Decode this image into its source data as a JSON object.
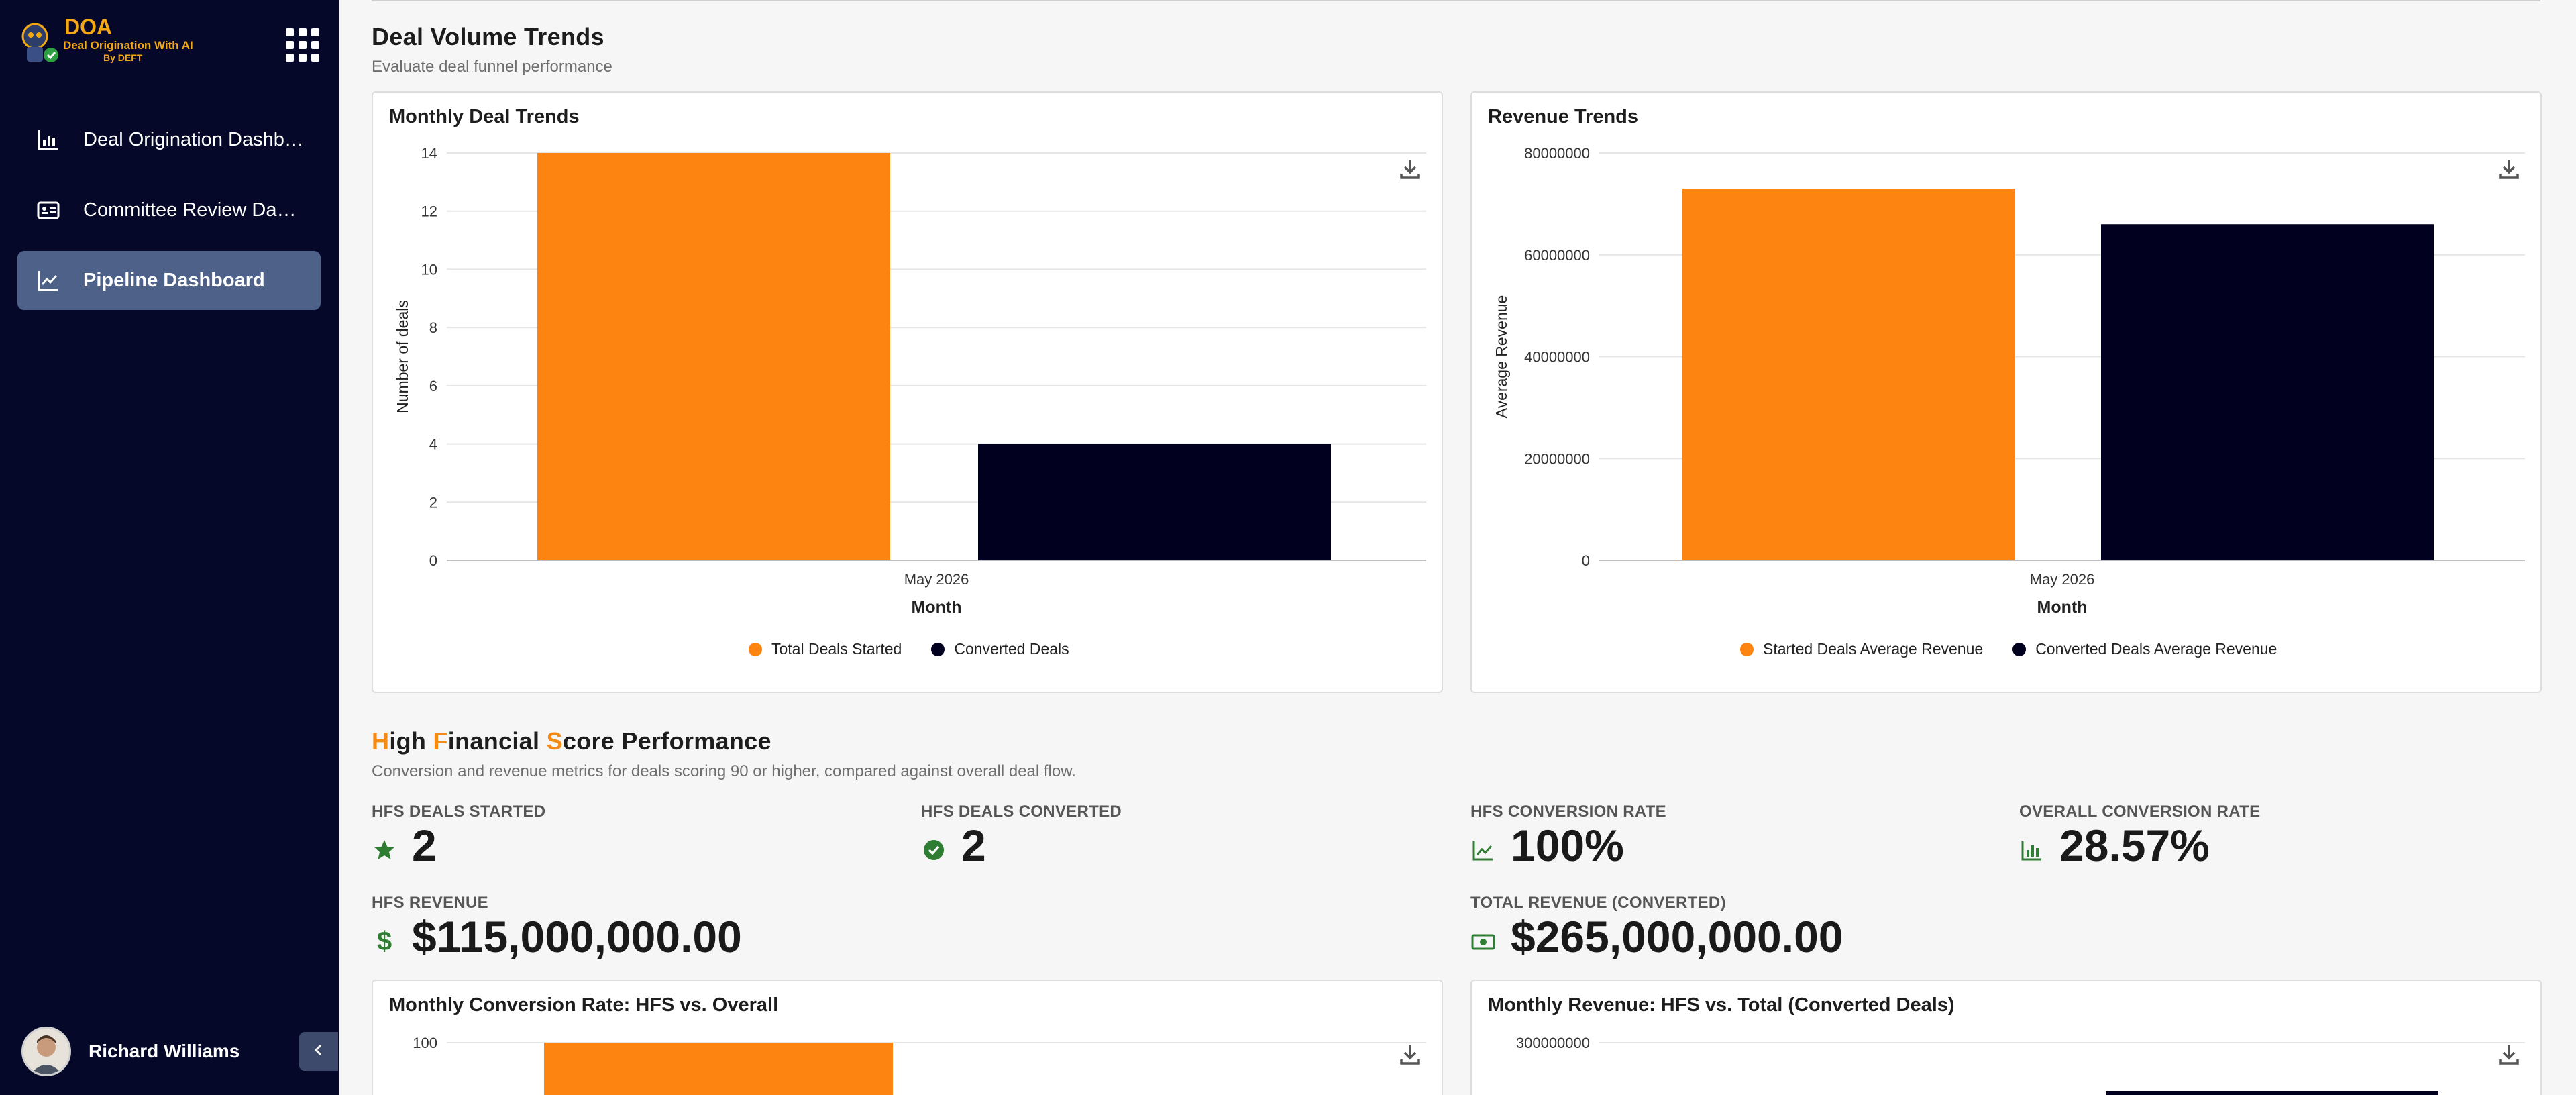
{
  "app": {
    "logo_text": "DOA",
    "logo_subtitle": "Deal Origination With AI",
    "logo_byline": "By DEFT"
  },
  "sidebar": {
    "items": [
      {
        "label": "Deal Origination Dashboard",
        "icon": "bar-chart-icon"
      },
      {
        "label": "Committee Review Dashboard",
        "icon": "id-card-icon"
      },
      {
        "label": "Pipeline Dashboard",
        "icon": "trending-up-icon",
        "active": true
      }
    ],
    "user": {
      "name": "Richard Williams"
    }
  },
  "volume": {
    "title": "Deal Volume Trends",
    "subtitle": "Evaluate deal funnel performance"
  },
  "hfs": {
    "title_parts": [
      "H",
      "igh ",
      "F",
      "inancial ",
      "S",
      "core Performance"
    ],
    "subtitle": "Conversion and revenue metrics for deals scoring 90 or higher, compared against overall deal flow.",
    "kpis": {
      "started": {
        "label": "HFS DEALS STARTED",
        "value": "2"
      },
      "converted": {
        "label": "HFS DEALS CONVERTED",
        "value": "2"
      },
      "conv_rate": {
        "label": "HFS CONVERSION RATE",
        "value": "100%"
      },
      "overall_rate": {
        "label": "OVERALL CONVERSION RATE",
        "value": "28.57%"
      },
      "revenue": {
        "label": "HFS REVENUE",
        "value": "$115,000,000.00"
      },
      "total_revenue": {
        "label": "TOTAL REVENUE (CONVERTED)",
        "value": "$265,000,000.00"
      }
    }
  },
  "colors": {
    "orange": "#fd8410",
    "navy": "#02001f",
    "green": "#2e7d32"
  },
  "chart_data": [
    {
      "title": "Monthly Deal Trends",
      "type": "bar",
      "categories": [
        "May 2026"
      ],
      "series": [
        {
          "name": "Total Deals Started",
          "values": [
            14
          ]
        },
        {
          "name": "Converted Deals",
          "values": [
            4
          ]
        }
      ],
      "xlabel": "Month",
      "ylabel": "Number of deals",
      "ylim": [
        0,
        14
      ],
      "yticks": [
        "0",
        "2",
        "4",
        "6",
        "8",
        "10",
        "12",
        "14"
      ],
      "grid": true,
      "legend": "bottom"
    },
    {
      "title": "Revenue Trends",
      "type": "bar",
      "categories": [
        "May 2026"
      ],
      "series": [
        {
          "name": "Started Deals Average Revenue",
          "values": [
            73000000
          ]
        },
        {
          "name": "Converted Deals Average Revenue",
          "values": [
            66000000
          ]
        }
      ],
      "xlabel": "Month",
      "ylabel": "Average Revenue",
      "ylim": [
        0,
        80000000
      ],
      "yticks": [
        "0",
        "20000000",
        "40000000",
        "60000000",
        "80000000"
      ],
      "grid": true,
      "legend": "bottom"
    },
    {
      "title": "Monthly Conversion Rate: HFS vs. Overall",
      "type": "bar",
      "yticks": [
        "100"
      ],
      "series": [
        {
          "values": [
            100
          ]
        }
      ],
      "grid": true
    },
    {
      "title": "Monthly Revenue: HFS vs. Total (Converted Deals)",
      "type": "bar",
      "yticks": [
        "300000000"
      ],
      "grid": true
    }
  ]
}
